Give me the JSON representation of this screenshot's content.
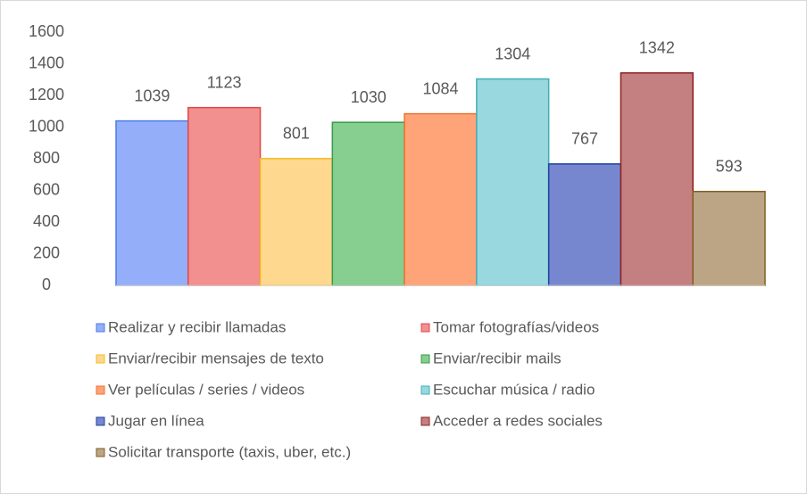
{
  "chart_data": {
    "type": "bar",
    "ylim": [
      0,
      1600
    ],
    "yticks": [
      0,
      200,
      400,
      600,
      800,
      1000,
      1200,
      1400,
      1600
    ],
    "legend": "bottom",
    "series": [
      {
        "name": "Realizar y recibir llamadas",
        "color": "#94aefa",
        "edge_color": "#4a7ee6",
        "values": [
          1039
        ]
      },
      {
        "name": "Tomar fotografías/videos",
        "color": "#f29090",
        "edge_color": "#e04848",
        "values": [
          1123
        ]
      },
      {
        "name": "Enviar/recibir mensajes de texto",
        "color": "#ffd890",
        "edge_color": "#f5b820",
        "values": [
          801
        ]
      },
      {
        "name": "Enviar/recibir mails",
        "color": "#86cf90",
        "edge_color": "#3a9a4a",
        "values": [
          1030
        ]
      },
      {
        "name": "Ver películas / series / videos",
        "color": "#ffa478",
        "edge_color": "#f07030",
        "values": [
          1084
        ]
      },
      {
        "name": "Escuchar música / radio",
        "color": "#98d8de",
        "edge_color": "#40b0b8",
        "values": [
          1304
        ]
      },
      {
        "name": "Jugar en línea",
        "color": "#7787cf",
        "edge_color": "#2040a0",
        "values": [
          767
        ]
      },
      {
        "name": "Acceder a redes sociales",
        "color": "#c47f80",
        "edge_color": "#902020",
        "values": [
          1342
        ]
      },
      {
        "name": "Solicitar transporte (taxis, uber, etc.)",
        "color": "#bba585",
        "edge_color": "#806020",
        "values": [
          593
        ]
      }
    ]
  }
}
